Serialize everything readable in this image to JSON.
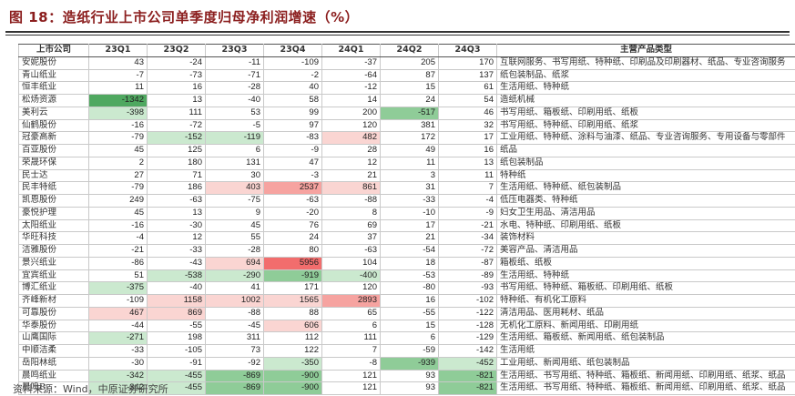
{
  "title": "图 18：造纸行业上市公司单季度归母净利润增速（%）",
  "source": "资料来源：Wind，中原证券研究所",
  "colors": {
    "g3": "#4fa860",
    "g2": "#8fcc98",
    "g1": "#cbe9cf",
    "r3": "#f26d6d",
    "r2": "#f6a3a0",
    "r1": "#fad5d2"
  },
  "table": {
    "headers": [
      "上市公司",
      "23Q1",
      "23Q2",
      "23Q3",
      "23Q4",
      "24Q1",
      "24Q2",
      "24Q3",
      "主营产品类型"
    ],
    "rows": [
      {
        "c": "安妮股份",
        "v": [
          "43",
          "-24",
          "-11",
          "-109",
          "-37",
          "205",
          "170"
        ],
        "h": [
          "",
          "",
          "",
          "",
          "",
          "",
          ""
        ],
        "p": "互联网服务、书写用纸、特种纸、印刷品及印刷器材、纸品、专业咨询服务"
      },
      {
        "c": "青山纸业",
        "v": [
          "-7",
          "-73",
          "-71",
          "-2",
          "-64",
          "87",
          "137"
        ],
        "h": [
          "",
          "",
          "",
          "",
          "",
          "",
          ""
        ],
        "p": "纸包装制品、纸浆"
      },
      {
        "c": "恒丰纸业",
        "v": [
          "11",
          "16",
          "-28",
          "40",
          "-12",
          "15",
          "61"
        ],
        "h": [
          "",
          "",
          "",
          "",
          "",
          "",
          ""
        ],
        "p": "生活用纸、特种纸"
      },
      {
        "c": "松炀资源",
        "v": [
          "-1342",
          "13",
          "-40",
          "58",
          "14",
          "24",
          "54"
        ],
        "h": [
          "g3",
          "",
          "",
          "",
          "",
          "",
          ""
        ],
        "p": "造纸机械"
      },
      {
        "c": "美利云",
        "v": [
          "-398",
          "111",
          "53",
          "99",
          "200",
          "-517",
          "46"
        ],
        "h": [
          "g1",
          "",
          "",
          "",
          "",
          "g2",
          ""
        ],
        "p": "书写用纸、箱板纸、印刷用纸、纸板"
      },
      {
        "c": "仙鹤股份",
        "v": [
          "-16",
          "-72",
          "-5",
          "97",
          "120",
          "381",
          "32"
        ],
        "h": [
          "",
          "",
          "",
          "",
          "",
          "",
          ""
        ],
        "p": "书写用纸、特种纸、印刷用纸、纸浆"
      },
      {
        "c": "冠豪高新",
        "v": [
          "-79",
          "-152",
          "-119",
          "-83",
          "482",
          "172",
          "17"
        ],
        "h": [
          "",
          "g1",
          "g1",
          "",
          "r1",
          "",
          ""
        ],
        "p": "工业用纸、特种纸、涂料与油漆、纸品、专业咨询服务、专用设备与零部件"
      },
      {
        "c": "百亚股份",
        "v": [
          "45",
          "125",
          "6",
          "-9",
          "28",
          "49",
          "16"
        ],
        "h": [
          "",
          "",
          "",
          "",
          "",
          "",
          ""
        ],
        "p": "纸品"
      },
      {
        "c": "荣晟环保",
        "v": [
          "2",
          "180",
          "131",
          "47",
          "12",
          "11",
          "13"
        ],
        "h": [
          "",
          "",
          "",
          "",
          "",
          "",
          ""
        ],
        "p": "纸包装制品"
      },
      {
        "c": "民士达",
        "v": [
          "27",
          "71",
          "30",
          "-3",
          "21",
          "3",
          "11"
        ],
        "h": [
          "",
          "",
          "",
          "",
          "",
          "",
          ""
        ],
        "p": "特种纸"
      },
      {
        "c": "民丰特纸",
        "v": [
          "-79",
          "186",
          "403",
          "2537",
          "861",
          "31",
          "7"
        ],
        "h": [
          "",
          "",
          "r1",
          "r2",
          "r1",
          "",
          ""
        ],
        "p": "生活用纸、特种纸、纸包装制品"
      },
      {
        "c": "凯恩股份",
        "v": [
          "249",
          "-63",
          "-75",
          "-63",
          "-88",
          "-33",
          "-4"
        ],
        "h": [
          "",
          "",
          "",
          "",
          "",
          "",
          ""
        ],
        "p": "低压电器类、特种纸"
      },
      {
        "c": "豪悦护理",
        "v": [
          "45",
          "13",
          "9",
          "-20",
          "8",
          "-10",
          "-9"
        ],
        "h": [
          "",
          "",
          "",
          "",
          "",
          "",
          ""
        ],
        "p": "妇女卫生用品、清洁用品"
      },
      {
        "c": "太阳纸业",
        "v": [
          "-16",
          "-30",
          "45",
          "76",
          "69",
          "17",
          "-21"
        ],
        "h": [
          "",
          "",
          "",
          "",
          "",
          "",
          ""
        ],
        "p": "水电、特种纸、印刷用纸、纸板"
      },
      {
        "c": "华旺科技",
        "v": [
          "-4",
          "12",
          "55",
          "24",
          "37",
          "21",
          "-34"
        ],
        "h": [
          "",
          "",
          "",
          "",
          "",
          "",
          ""
        ],
        "p": "装饰材料"
      },
      {
        "c": "洁雅股份",
        "v": [
          "-21",
          "-33",
          "-28",
          "80",
          "-63",
          "-54",
          "-72"
        ],
        "h": [
          "",
          "",
          "",
          "",
          "",
          "",
          ""
        ],
        "p": "美容产品、清洁用品"
      },
      {
        "c": "景兴纸业",
        "v": [
          "-86",
          "-43",
          "694",
          "5956",
          "104",
          "18",
          "-87"
        ],
        "h": [
          "",
          "",
          "r1",
          "r3",
          "",
          "",
          ""
        ],
        "p": "箱板纸、纸板"
      },
      {
        "c": "宜宾纸业",
        "v": [
          "51",
          "-538",
          "-290",
          "-919",
          "-400",
          "-53",
          "-89"
        ],
        "h": [
          "",
          "g1",
          "g1",
          "g2",
          "g1",
          "",
          ""
        ],
        "p": "生活用纸、特种纸"
      },
      {
        "c": "博汇纸业",
        "v": [
          "-375",
          "-40",
          "41",
          "171",
          "120",
          "-80",
          "-93"
        ],
        "h": [
          "g1",
          "",
          "",
          "",
          "",
          "",
          ""
        ],
        "p": "书写用纸、特种纸、箱板纸、印刷用纸、纸板"
      },
      {
        "c": "齐峰新材",
        "v": [
          "-109",
          "1158",
          "1002",
          "1565",
          "2893",
          "16",
          "-102"
        ],
        "h": [
          "",
          "r1",
          "r1",
          "r1",
          "r2",
          "",
          ""
        ],
        "p": "特种纸、有机化工原料"
      },
      {
        "c": "可靠股份",
        "v": [
          "467",
          "869",
          "-88",
          "88",
          "65",
          "-55",
          "-122"
        ],
        "h": [
          "r1",
          "r1",
          "",
          "",
          "",
          "",
          ""
        ],
        "p": "清洁用品、医用耗材、纸品"
      },
      {
        "c": "华泰股份",
        "v": [
          "-44",
          "-55",
          "-45",
          "606",
          "6",
          "15",
          "-128"
        ],
        "h": [
          "",
          "",
          "",
          "r1",
          "",
          "",
          ""
        ],
        "p": "无机化工原料、新闻用纸、印刷用纸"
      },
      {
        "c": "山鹰国际",
        "v": [
          "-271",
          "198",
          "311",
          "112",
          "111",
          "6",
          "-129"
        ],
        "h": [
          "g1",
          "",
          "",
          "",
          "",
          "",
          ""
        ],
        "p": "生活用纸、箱板纸、新闻用纸、纸包装制品"
      },
      {
        "c": "中顺洁柔",
        "v": [
          "-33",
          "-105",
          "73",
          "122",
          "7",
          "-59",
          "-142"
        ],
        "h": [
          "",
          "",
          "",
          "",
          "",
          "",
          ""
        ],
        "p": "生活用纸"
      },
      {
        "c": "岳阳林纸",
        "v": [
          "-30",
          "-91",
          "-92",
          "-350",
          "-8",
          "-939",
          "-452"
        ],
        "h": [
          "",
          "",
          "",
          "g1",
          "",
          "g2",
          "g1"
        ],
        "p": "工业用纸、新闻用纸、纸包装制品"
      },
      {
        "c": "晨鸣纸业",
        "v": [
          "-342",
          "-455",
          "-869",
          "-900",
          "121",
          "93",
          "-821"
        ],
        "h": [
          "g1",
          "g1",
          "g2",
          "g2",
          "",
          "",
          "g2"
        ],
        "p": "生活用纸、书写用纸、特种纸、箱板纸、新闻用纸、印刷用纸、纸浆、纸品"
      },
      {
        "c": "晨鸣B",
        "v": [
          "-342",
          "-455",
          "-869",
          "-900",
          "121",
          "93",
          "-821"
        ],
        "h": [
          "g1",
          "g1",
          "g2",
          "g2",
          "",
          "",
          "g2"
        ],
        "p": "生活用纸、书写用纸、特种纸、箱板纸、新闻用纸、印刷用纸、纸浆、纸品"
      }
    ]
  }
}
